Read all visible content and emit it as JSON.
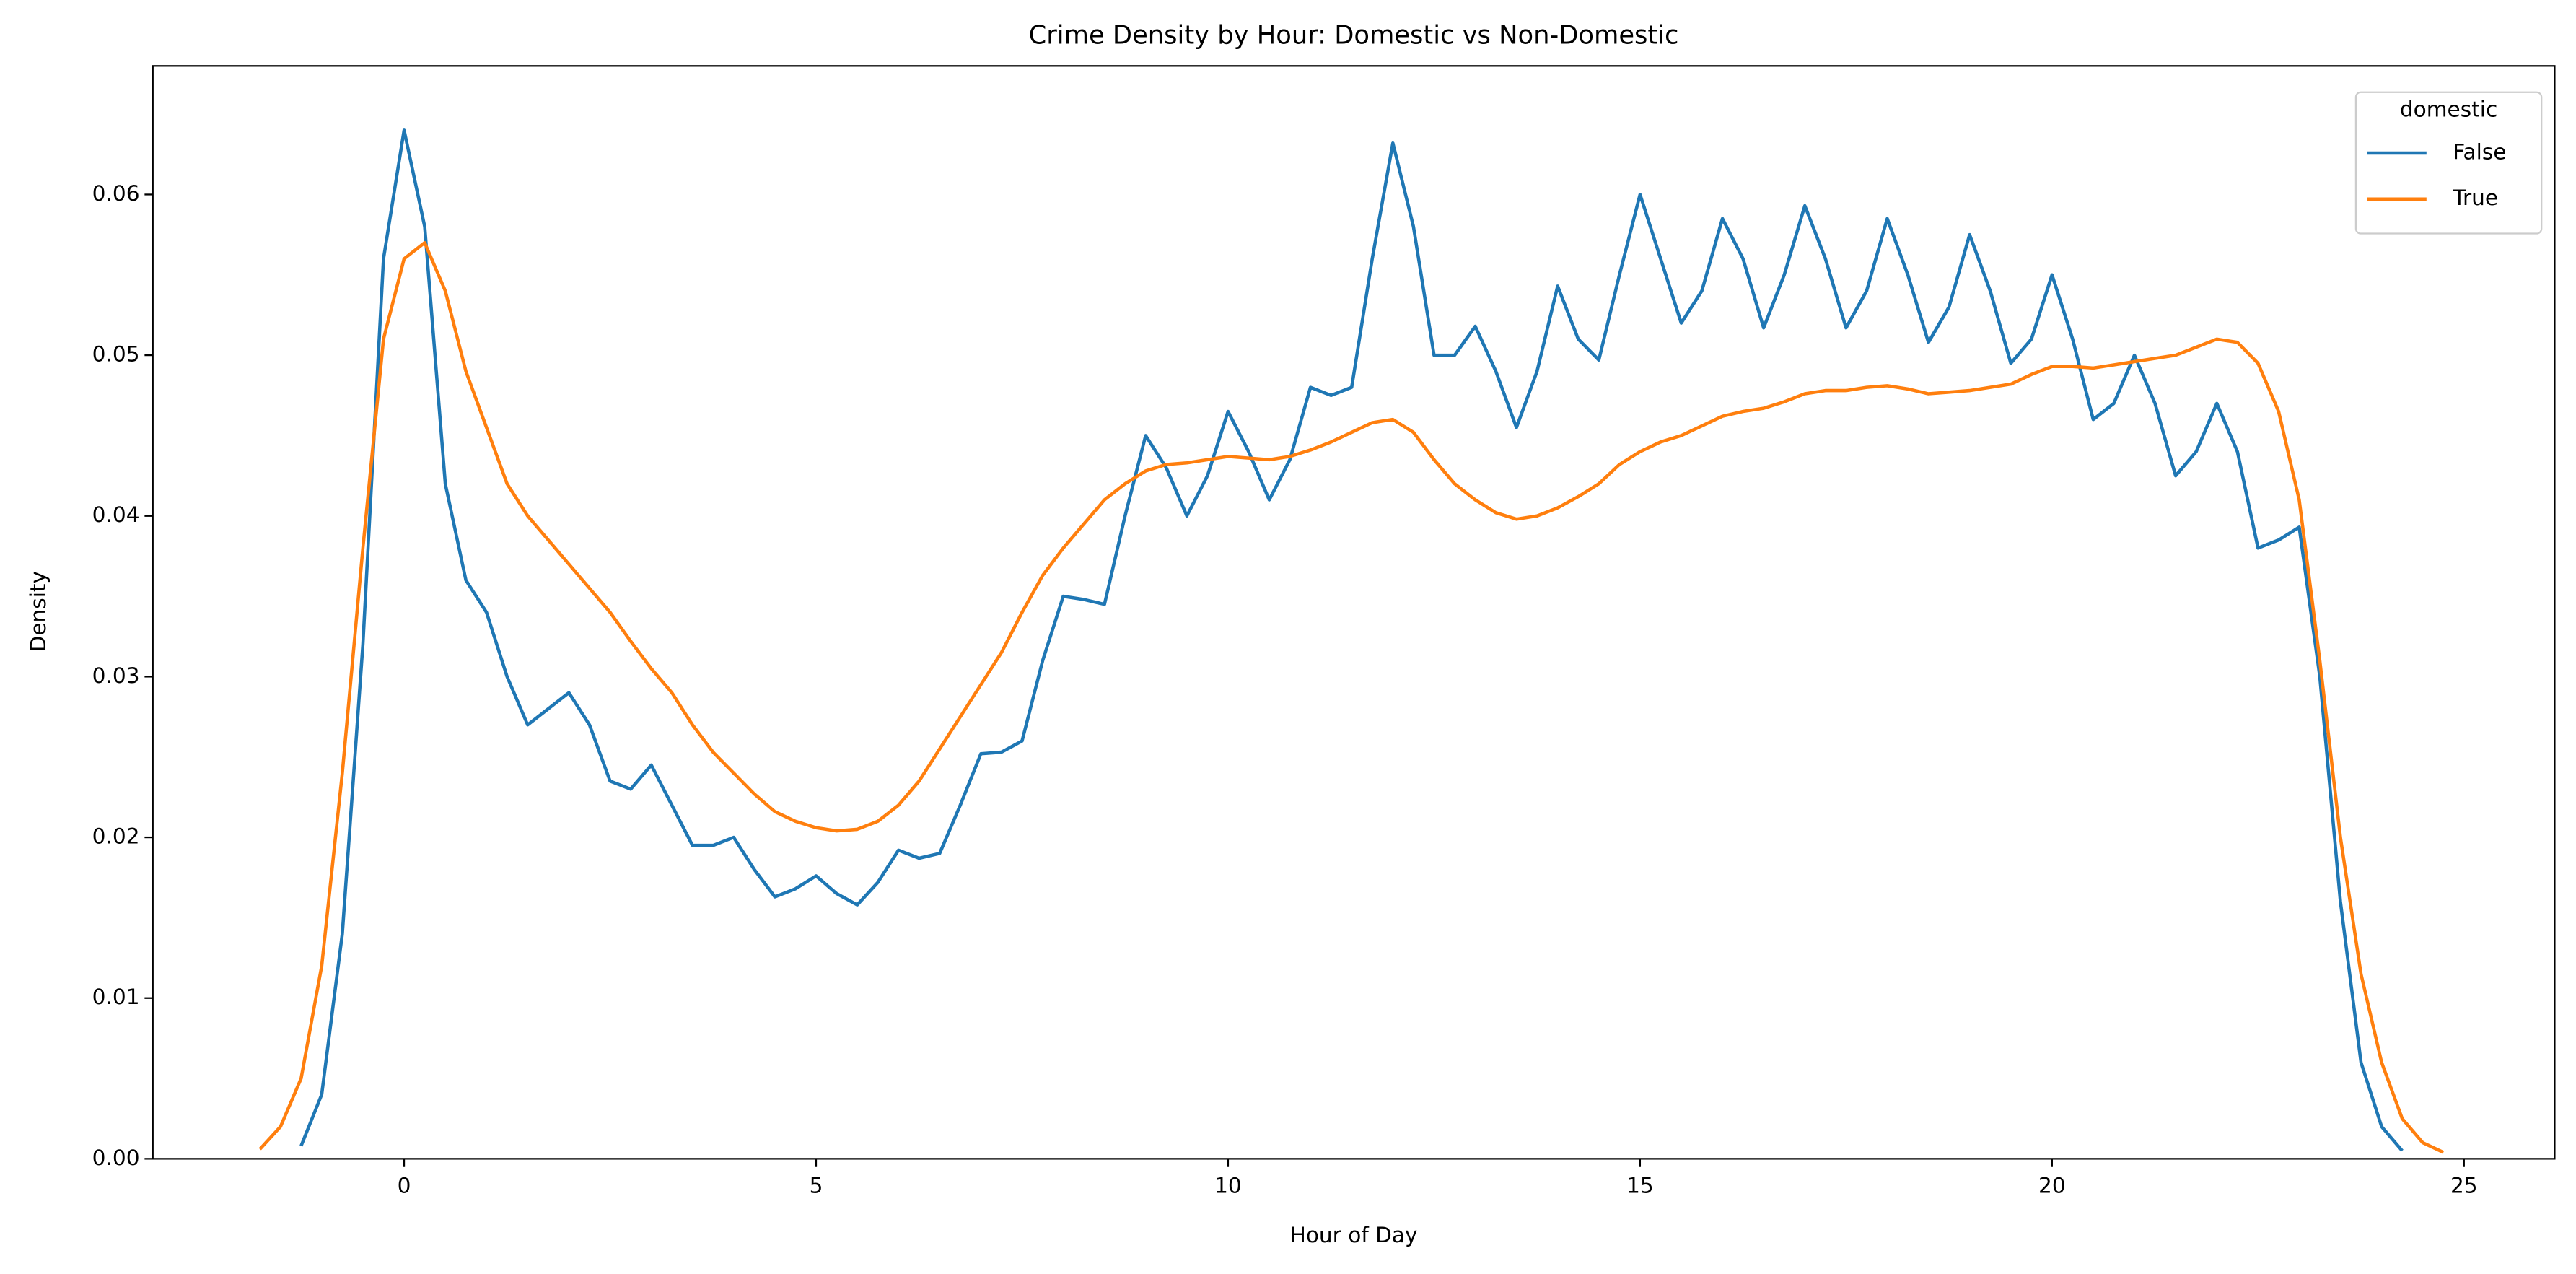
{
  "chart_data": {
    "type": "line",
    "title": "Crime Density by Hour: Domestic vs Non-Domestic",
    "x_label": "Hour of Day",
    "y_label": "Density",
    "legend_title": "domestic",
    "legend_position": "upper right",
    "x": [
      -1.75,
      -1.5,
      -1.25,
      -1,
      -0.75,
      -0.5,
      -0.25,
      0,
      0.25,
      0.5,
      0.75,
      1,
      1.25,
      1.5,
      1.75,
      2,
      2.25,
      2.5,
      2.75,
      3,
      3.25,
      3.5,
      3.75,
      4,
      4.25,
      4.5,
      4.75,
      5,
      5.25,
      5.5,
      5.75,
      6,
      6.25,
      6.5,
      6.75,
      7,
      7.25,
      7.5,
      7.75,
      8,
      8.25,
      8.5,
      8.75,
      9,
      9.25,
      9.5,
      9.75,
      10,
      10.25,
      10.5,
      10.75,
      11,
      11.25,
      11.5,
      11.75,
      12,
      12.25,
      12.5,
      12.75,
      13,
      13.25,
      13.5,
      13.75,
      14,
      14.25,
      14.5,
      14.75,
      15,
      15.25,
      15.5,
      15.75,
      16,
      16.25,
      16.5,
      16.75,
      17,
      17.25,
      17.5,
      17.75,
      18,
      18.25,
      18.5,
      18.75,
      19,
      19.25,
      19.5,
      19.75,
      20,
      20.25,
      20.5,
      20.75,
      21,
      21.25,
      21.5,
      21.75,
      22,
      22.25,
      22.5,
      22.75,
      23,
      23.25,
      23.5,
      23.75,
      24,
      24.25,
      24.5,
      24.75
    ],
    "series": [
      {
        "name": "False",
        "color": "#1f77b4",
        "values": [
          null,
          null,
          0.0008,
          0.004,
          0.014,
          0.032,
          0.056,
          0.064,
          0.058,
          0.042,
          0.036,
          0.034,
          0.03,
          0.027,
          0.028,
          0.029,
          0.027,
          0.0235,
          0.023,
          0.0245,
          0.022,
          0.0195,
          0.0195,
          0.02,
          0.018,
          0.0163,
          0.0168,
          0.0176,
          0.0165,
          0.0158,
          0.0172,
          0.0192,
          0.0187,
          0.019,
          0.022,
          0.0252,
          0.0253,
          0.026,
          0.031,
          0.035,
          0.0348,
          0.0345,
          0.04,
          0.045,
          0.043,
          0.04,
          0.0425,
          0.0465,
          0.044,
          0.041,
          0.0435,
          0.048,
          0.0475,
          0.048,
          0.056,
          0.0632,
          0.058,
          0.05,
          0.05,
          0.0518,
          0.049,
          0.0455,
          0.049,
          0.0543,
          0.051,
          0.0497,
          0.055,
          0.06,
          0.056,
          0.052,
          0.054,
          0.0585,
          0.056,
          0.0517,
          0.055,
          0.0593,
          0.056,
          0.0517,
          0.054,
          0.0585,
          0.055,
          0.0508,
          0.053,
          0.0575,
          0.054,
          0.0495,
          0.051,
          0.055,
          0.051,
          0.046,
          0.047,
          0.05,
          0.047,
          0.0425,
          0.044,
          0.047,
          0.044,
          0.038,
          0.0385,
          0.0393,
          0.03,
          0.016,
          0.006,
          0.002,
          0.0005,
          null,
          null
        ]
      },
      {
        "name": "True",
        "color": "#ff7f0e",
        "values": [
          0.0006,
          0.002,
          0.005,
          0.012,
          0.024,
          0.038,
          0.051,
          0.056,
          0.057,
          0.054,
          0.049,
          0.0455,
          0.042,
          0.04,
          0.0385,
          0.037,
          0.0355,
          0.034,
          0.0322,
          0.0305,
          0.029,
          0.027,
          0.0253,
          0.024,
          0.0227,
          0.0216,
          0.021,
          0.0206,
          0.0204,
          0.0205,
          0.021,
          0.022,
          0.0235,
          0.0255,
          0.0275,
          0.0295,
          0.0315,
          0.034,
          0.0363,
          0.038,
          0.0395,
          0.041,
          0.042,
          0.0428,
          0.0432,
          0.0433,
          0.0435,
          0.0437,
          0.0436,
          0.0435,
          0.0437,
          0.0441,
          0.0446,
          0.0452,
          0.0458,
          0.046,
          0.0452,
          0.0435,
          0.042,
          0.041,
          0.0402,
          0.0398,
          0.04,
          0.0405,
          0.0412,
          0.042,
          0.0432,
          0.044,
          0.0446,
          0.045,
          0.0456,
          0.0462,
          0.0465,
          0.0467,
          0.0471,
          0.0476,
          0.0478,
          0.0478,
          0.048,
          0.0481,
          0.0479,
          0.0476,
          0.0477,
          0.0478,
          0.048,
          0.0482,
          0.0488,
          0.0493,
          0.0493,
          0.0492,
          0.0494,
          0.0496,
          0.0498,
          0.05,
          0.0505,
          0.051,
          0.0508,
          0.0495,
          0.0465,
          0.041,
          0.031,
          0.02,
          0.0115,
          0.006,
          0.0025,
          0.001,
          0.0004
        ]
      }
    ],
    "xlim": [
      -3.05,
      26.1
    ],
    "ylim": [
      0,
      0.068
    ],
    "xticks": [
      0,
      5,
      10,
      15,
      20,
      25
    ],
    "yticks": [
      {
        "value": 0,
        "label": "0.00"
      },
      {
        "value": 0.01,
        "label": "0.01"
      },
      {
        "value": 0.02,
        "label": "0.02"
      },
      {
        "value": 0.03,
        "label": "0.03"
      },
      {
        "value": 0.04,
        "label": "0.04"
      },
      {
        "value": 0.05,
        "label": "0.05"
      },
      {
        "value": 0.06,
        "label": "0.06"
      }
    ],
    "grid": false
  }
}
